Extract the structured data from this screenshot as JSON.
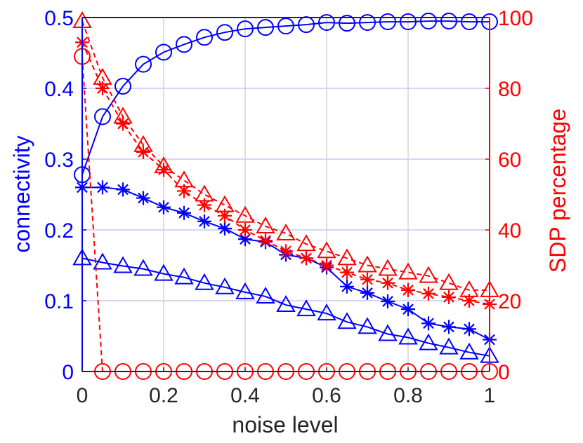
{
  "chart_data": {
    "type": "line",
    "xlabel": "noise level",
    "ylabel_left": "connectivity",
    "ylabel_right": "SDP percentage",
    "xlim": [
      0,
      1
    ],
    "ylim_left": [
      0,
      0.5
    ],
    "ylim_right": [
      0,
      100
    ],
    "x_ticks": [
      0,
      0.2,
      0.4,
      0.6,
      0.8,
      1
    ],
    "x_tick_labels": [
      "0",
      "0.2",
      "0.4",
      "0.6",
      "0.8",
      "1"
    ],
    "y_left_ticks": [
      0,
      0.1,
      0.2,
      0.3,
      0.4,
      0.5
    ],
    "y_left_tick_labels": [
      "0",
      "0.1",
      "0.2",
      "0.3",
      "0.4",
      "0.5"
    ],
    "y_right_ticks": [
      0,
      20,
      40,
      60,
      80,
      100
    ],
    "y_right_tick_labels": [
      "0",
      "20",
      "40",
      "60",
      "80",
      "100"
    ],
    "grid": true,
    "colors": {
      "left": "#0000ff",
      "right": "#ff0000",
      "grid": "#d0d0d0",
      "axis": "#000000"
    },
    "x": [
      0,
      0.05,
      0.1,
      0.15,
      0.2,
      0.25,
      0.3,
      0.35,
      0.4,
      0.45,
      0.5,
      0.55,
      0.6,
      0.65,
      0.7,
      0.75,
      0.8,
      0.85,
      0.9,
      0.95,
      1
    ],
    "series": [
      {
        "name": "connectivity-circle",
        "axis": "left",
        "marker": "circle",
        "dashed": false,
        "color": "#0000ff",
        "values": [
          0.278,
          0.36,
          0.403,
          0.434,
          0.451,
          0.462,
          0.472,
          0.479,
          0.484,
          0.486,
          0.488,
          0.49,
          0.493,
          0.492,
          0.493,
          0.494,
          0.494,
          0.495,
          0.495,
          0.494,
          0.494
        ]
      },
      {
        "name": "connectivity-star",
        "axis": "left",
        "marker": "star",
        "dashed": false,
        "color": "#0000ff",
        "values": [
          0.26,
          0.26,
          0.257,
          0.245,
          0.232,
          0.224,
          0.212,
          0.202,
          0.187,
          0.183,
          0.165,
          0.16,
          0.147,
          0.12,
          0.111,
          0.099,
          0.088,
          0.068,
          0.063,
          0.06,
          0.045
        ]
      },
      {
        "name": "connectivity-triangle",
        "axis": "left",
        "marker": "triangle",
        "dashed": false,
        "color": "#0000ff",
        "values": [
          0.16,
          0.154,
          0.149,
          0.145,
          0.138,
          0.133,
          0.125,
          0.119,
          0.112,
          0.106,
          0.094,
          0.088,
          0.082,
          0.07,
          0.063,
          0.053,
          0.048,
          0.04,
          0.034,
          0.027,
          0.022
        ]
      },
      {
        "name": "sdp-circle",
        "axis": "right",
        "marker": "circle",
        "dashed": true,
        "color": "#ff0000",
        "values": [
          89,
          0,
          0,
          0,
          0,
          0,
          0,
          0,
          0,
          0,
          0,
          0,
          0,
          0,
          0,
          0,
          0,
          0,
          0,
          0,
          0
        ]
      },
      {
        "name": "sdp-star",
        "axis": "right",
        "marker": "star",
        "dashed": true,
        "color": "#ff0000",
        "values": [
          93,
          80,
          70,
          62,
          57,
          51,
          47,
          44,
          40,
          37,
          34,
          32,
          30,
          28,
          26,
          25,
          23,
          22,
          21,
          20,
          19
        ]
      },
      {
        "name": "sdp-triangle",
        "axis": "right",
        "marker": "triangle",
        "dashed": true,
        "color": "#ff0000",
        "values": [
          99,
          83,
          72,
          64,
          58,
          54,
          50,
          47,
          44,
          41,
          39,
          36,
          34,
          32,
          30,
          29,
          28,
          27,
          25,
          23,
          23
        ]
      }
    ]
  }
}
